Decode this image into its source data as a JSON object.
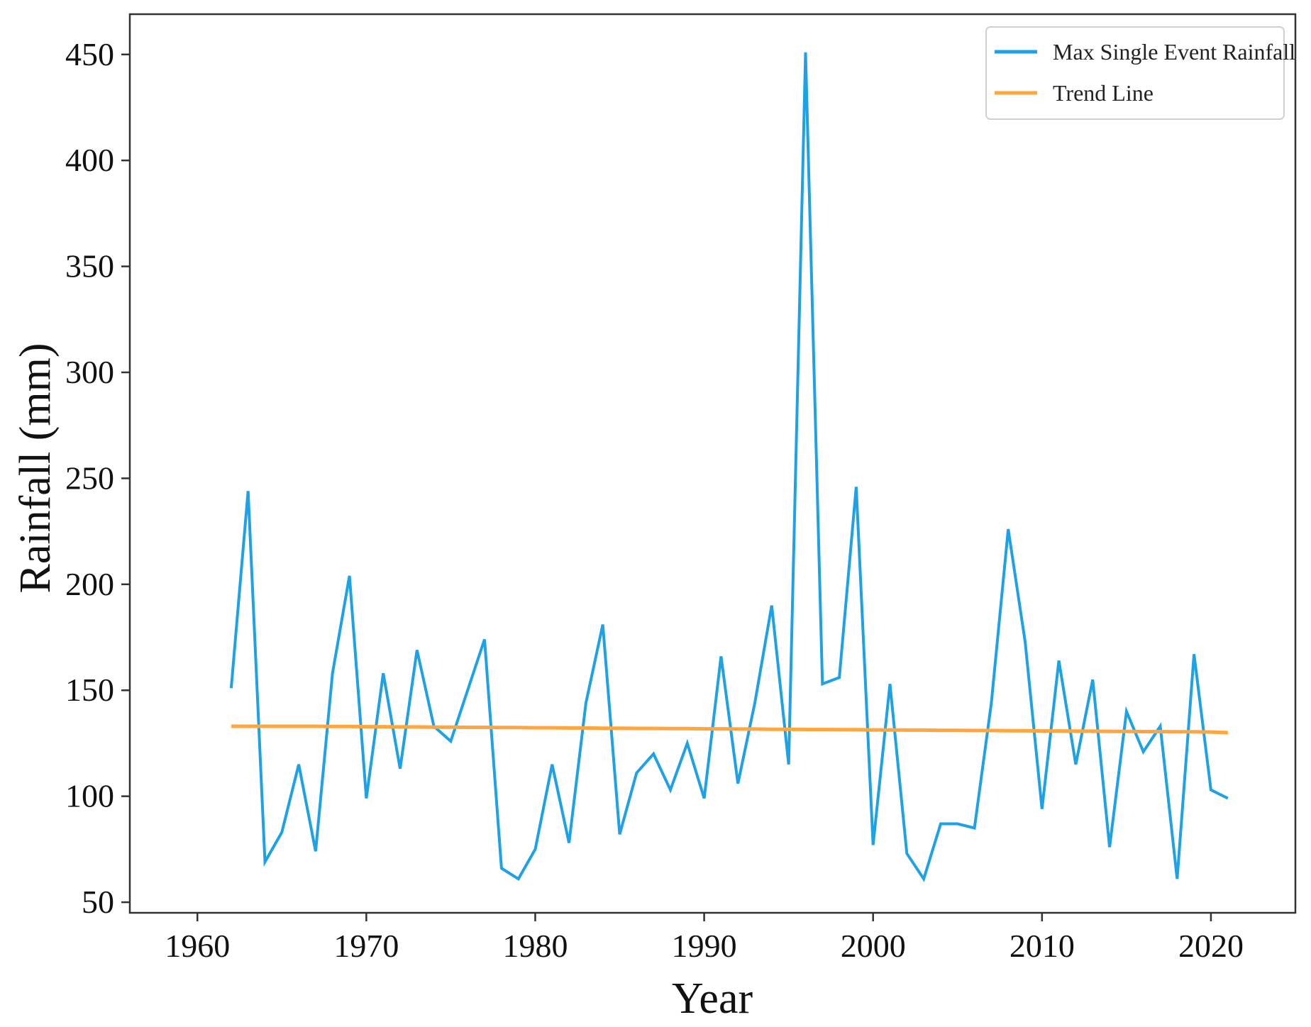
{
  "chart_data": {
    "type": "line",
    "xlabel": "Year",
    "ylabel": "Rainfall (mm)",
    "xlim": [
      1956,
      2025
    ],
    "ylim": [
      45,
      469
    ],
    "x_ticks": [
      1960,
      1970,
      1980,
      1990,
      2000,
      2010,
      2020
    ],
    "y_ticks": [
      50,
      100,
      150,
      200,
      250,
      300,
      350,
      400,
      450
    ],
    "legend_position": "top-right",
    "grid": false,
    "x": [
      1962,
      1963,
      1964,
      1965,
      1966,
      1967,
      1968,
      1969,
      1970,
      1971,
      1972,
      1973,
      1974,
      1975,
      1976,
      1977,
      1978,
      1979,
      1980,
      1981,
      1982,
      1983,
      1984,
      1985,
      1986,
      1987,
      1988,
      1989,
      1990,
      1991,
      1992,
      1993,
      1994,
      1995,
      1996,
      1997,
      1998,
      1999,
      2000,
      2001,
      2002,
      2003,
      2004,
      2005,
      2006,
      2007,
      2008,
      2009,
      2010,
      2011,
      2012,
      2013,
      2014,
      2015,
      2016,
      2017,
      2018,
      2019,
      2020,
      2021
    ],
    "series": [
      {
        "name": "Max Single Event Rainfall",
        "color": "#1ea1e5",
        "values": [
          151,
          244,
          69,
          83,
          115,
          74,
          158,
          204,
          99,
          158,
          113,
          169,
          133,
          126,
          150,
          174,
          66,
          61,
          75,
          115,
          78,
          144,
          181,
          82,
          111,
          120,
          103,
          125,
          99,
          166,
          106,
          144,
          190,
          115,
          451,
          153,
          156,
          246,
          77,
          153,
          73,
          61,
          87,
          87,
          85,
          144,
          226,
          173,
          94,
          164,
          115,
          155,
          76,
          140,
          121,
          133,
          61,
          167,
          103,
          99
        ]
      },
      {
        "name": "Trend Line",
        "color": "#ffa640",
        "values": [
          133,
          133,
          133,
          133,
          133,
          133,
          132.9,
          132.9,
          132.8,
          132.8,
          132.7,
          132.7,
          132.6,
          132.6,
          132.5,
          132.5,
          132.4,
          132.4,
          132.3,
          132.3,
          132.2,
          132.2,
          132.1,
          132.1,
          132,
          132,
          131.9,
          131.9,
          131.8,
          131.8,
          131.7,
          131.7,
          131.6,
          131.6,
          131.5,
          131.5,
          131.4,
          131.4,
          131.3,
          131.3,
          131.2,
          131.2,
          131.1,
          131.1,
          131,
          131,
          130.9,
          130.9,
          130.8,
          130.8,
          130.7,
          130.7,
          130.6,
          130.6,
          130.5,
          130.5,
          130.4,
          130.4,
          130.3,
          130
        ]
      }
    ]
  }
}
